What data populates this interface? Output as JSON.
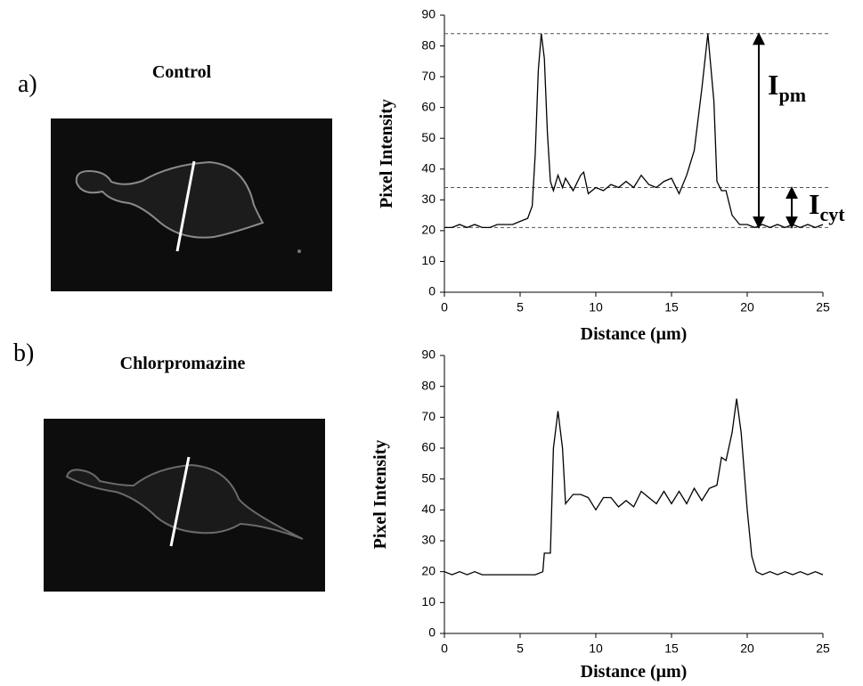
{
  "chart_data": [
    {
      "type": "line",
      "panel_label": "a)",
      "image_title": "Control",
      "xlabel": "Distance (μm)",
      "ylabel": "Pixel Intensity",
      "color": "#000000",
      "x": [
        0,
        0.5,
        1,
        1.5,
        2,
        2.5,
        3,
        3.5,
        4,
        4.5,
        5,
        5.5,
        5.8,
        6,
        6.2,
        6.4,
        6.6,
        6.8,
        7,
        7.2,
        7.5,
        7.8,
        8,
        8.5,
        9,
        9.2,
        9.5,
        10,
        10.5,
        11,
        11.5,
        12,
        12.5,
        13,
        13.5,
        14,
        14.5,
        15,
        15.5,
        16,
        16.5,
        17,
        17.4,
        17.8,
        18,
        18.3,
        18.6,
        19,
        19.5,
        20,
        20.5,
        21,
        21.5,
        22,
        22.5,
        23,
        23.5,
        24,
        24.5,
        25
      ],
      "values": [
        21,
        21,
        22,
        21,
        22,
        21,
        21,
        22,
        22,
        22,
        23,
        24,
        28,
        45,
        72,
        84,
        76,
        52,
        36,
        33,
        38,
        34,
        37,
        33,
        38,
        39,
        32,
        34,
        33,
        35,
        34,
        36,
        34,
        38,
        35,
        34,
        36,
        37,
        32,
        38,
        46,
        66,
        84,
        62,
        36,
        33,
        33,
        25,
        22,
        22,
        21,
        22,
        21,
        22,
        21,
        22,
        21,
        22,
        21,
        22
      ],
      "xlim": [
        0,
        25
      ],
      "ylim": [
        0,
        90
      ],
      "xticks": [
        0,
        5,
        10,
        15,
        20,
        25
      ],
      "yticks": [
        0,
        10,
        20,
        30,
        40,
        50,
        60,
        70,
        80,
        90
      ],
      "reference_lines": [
        84,
        34,
        21
      ],
      "annotations": [
        {
          "text": "I",
          "subscript": "pm"
        },
        {
          "text": "I",
          "subscript": "cyt"
        }
      ]
    },
    {
      "type": "line",
      "panel_label": "b)",
      "image_title": "Chlorpromazine",
      "xlabel": "Distance (μm)",
      "ylabel": "Pixel Intensity",
      "color": "#000000",
      "x": [
        0,
        0.5,
        1,
        1.5,
        2,
        2.5,
        3,
        3.5,
        4,
        4.5,
        5,
        5.5,
        6,
        6.5,
        6.6,
        7,
        7.2,
        7.5,
        7.8,
        8,
        8.5,
        9,
        9.5,
        10,
        10.5,
        11,
        11.5,
        12,
        12.5,
        13,
        13.5,
        14,
        14.5,
        15,
        15.5,
        16,
        16.5,
        17,
        17.5,
        18,
        18.3,
        18.6,
        19,
        19.3,
        19.6,
        20,
        20.3,
        20.6,
        21,
        21.5,
        22,
        22.5,
        23,
        23.5,
        24,
        24.5,
        25
      ],
      "values": [
        20,
        19,
        20,
        19,
        20,
        19,
        19,
        19,
        19,
        19,
        19,
        19,
        19,
        20,
        26,
        26,
        60,
        72,
        60,
        42,
        45,
        45,
        44,
        40,
        44,
        44,
        41,
        43,
        41,
        46,
        44,
        42,
        46,
        42,
        46,
        42,
        47,
        43,
        47,
        48,
        57,
        56,
        65,
        76,
        65,
        40,
        25,
        20,
        19,
        20,
        19,
        20,
        19,
        20,
        19,
        20,
        19
      ],
      "xlim": [
        0,
        25
      ],
      "ylim": [
        0,
        90
      ],
      "xticks": [
        0,
        5,
        10,
        15,
        20,
        25
      ],
      "yticks": [
        0,
        10,
        20,
        30,
        40,
        50,
        60,
        70,
        80,
        90
      ]
    }
  ]
}
